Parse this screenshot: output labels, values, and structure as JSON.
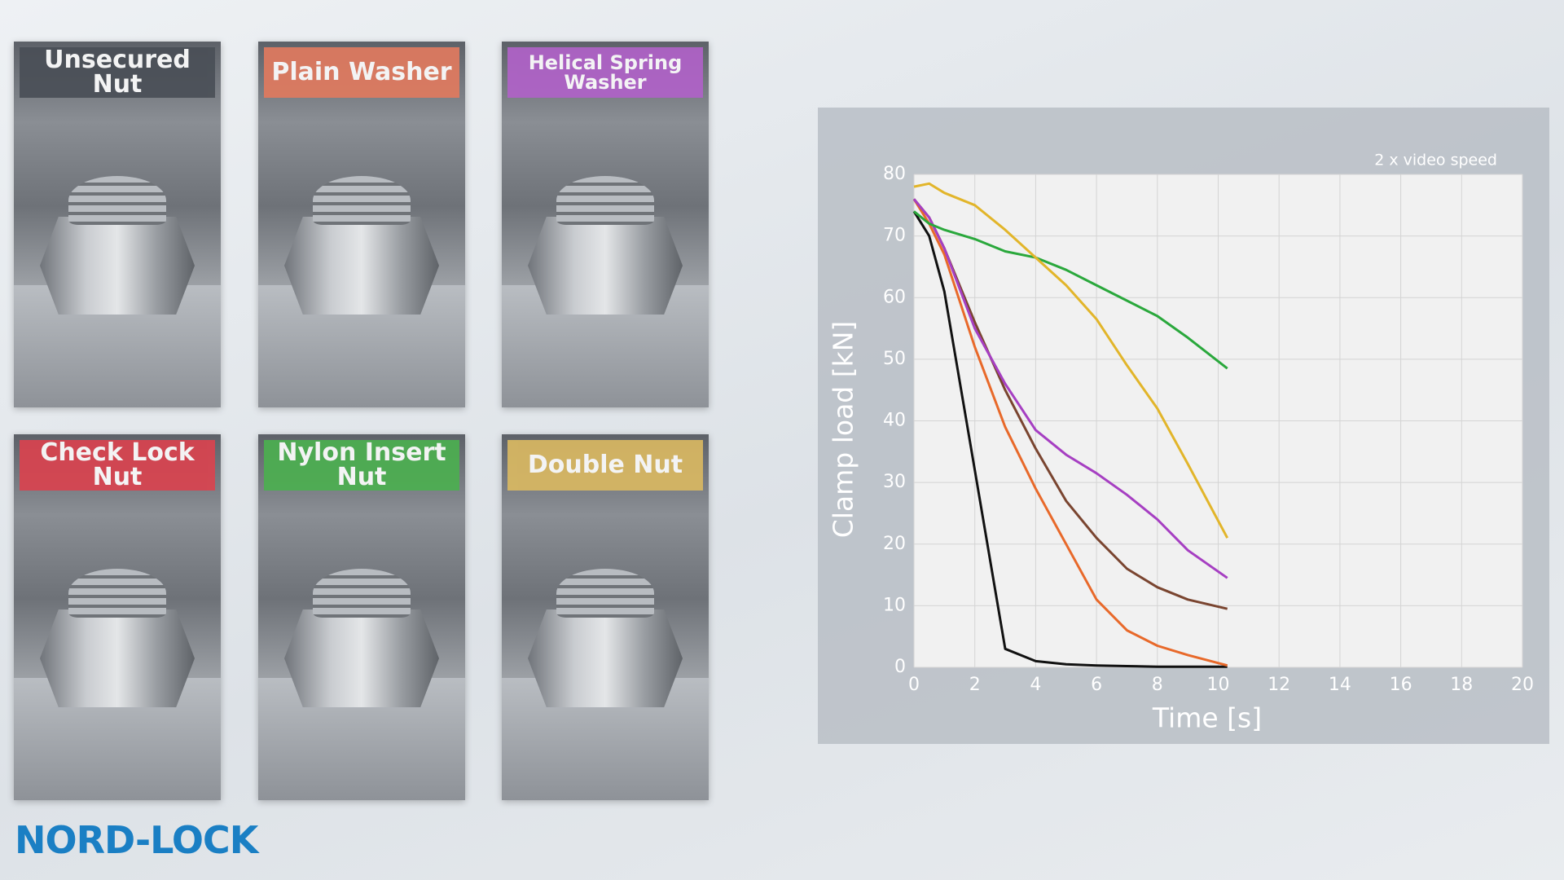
{
  "panels": [
    {
      "label": "Unsecured Nut",
      "color": "#4a4f57"
    },
    {
      "label": "Plain Washer",
      "color": "#e07a5f"
    },
    {
      "label": "Helical Spring Washer",
      "color": "#b062c8"
    },
    {
      "label": "Check Lock Nut",
      "color": "#d9434f"
    },
    {
      "label": "Nylon Insert Nut",
      "color": "#4caf50"
    },
    {
      "label": "Double Nut",
      "color": "#d9b862"
    }
  ],
  "logo": "NORD-LOCK",
  "chart_data": {
    "type": "line",
    "annotation": "2 x video speed",
    "xlabel": "Time [s]",
    "ylabel": "Clamp load [kN]",
    "x": [
      0,
      0.5,
      1,
      2,
      3,
      4,
      5,
      6,
      7,
      8,
      9,
      10.3
    ],
    "series": [
      {
        "color": "#111111",
        "values": [
          74,
          70,
          61,
          32,
          3,
          1,
          0.5,
          0.3,
          0.2,
          0.1,
          0.1,
          0.1
        ]
      },
      {
        "color": "#e8692a",
        "values": [
          76,
          72,
          67,
          52,
          39,
          29,
          20,
          11,
          6,
          3.5,
          2,
          0.3
        ]
      },
      {
        "color": "#7a4530",
        "values": [
          76,
          73,
          68,
          56,
          45,
          35.5,
          27,
          21,
          16,
          13,
          11,
          9.5
        ]
      },
      {
        "color": "#a63fc2",
        "values": [
          76,
          73,
          68,
          55,
          46,
          38.5,
          34.5,
          31.5,
          28,
          24,
          19,
          14.5
        ]
      },
      {
        "color": "#2aa83c",
        "values": [
          74,
          72,
          71,
          69.5,
          67.5,
          66.5,
          64.5,
          62,
          59.5,
          57,
          53.5,
          48.5
        ]
      },
      {
        "color": "#e2b52a",
        "values": [
          78,
          78.5,
          77,
          75,
          71,
          66.5,
          62,
          56.5,
          49,
          42,
          33,
          21
        ]
      }
    ],
    "xlim": [
      0,
      20
    ],
    "xticks": [
      0,
      2,
      4,
      6,
      8,
      10,
      12,
      14,
      16,
      18,
      20
    ],
    "ylim": [
      0,
      80
    ],
    "yticks": [
      0,
      10,
      20,
      30,
      40,
      50,
      60,
      70,
      80
    ],
    "grid": true
  }
}
